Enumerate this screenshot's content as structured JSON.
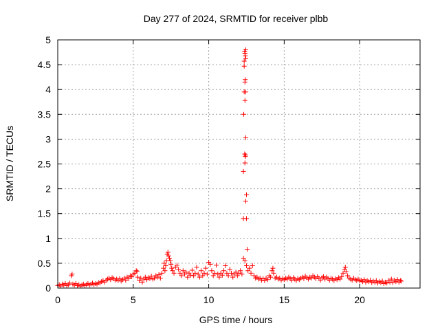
{
  "chart_data": {
    "type": "scatter",
    "title": "Day 277 of 2024, SRMTID for receiver plbb",
    "xlabel": "GPS time / hours",
    "ylabel": "SRMTID / TECUs",
    "xlim": [
      0,
      24
    ],
    "ylim": [
      0,
      5
    ],
    "xticks": [
      "0",
      "5",
      "10",
      "15",
      "20"
    ],
    "yticks": [
      "0",
      "0.5",
      "1",
      "1.5",
      "2",
      "2.5",
      "3",
      "3.5",
      "4",
      "4.5",
      "5"
    ],
    "grid": true,
    "marker": "plus",
    "color": "#ff0000",
    "series": [
      {
        "points": [
          [
            0.0,
            0.05
          ],
          [
            0.1,
            0.07
          ],
          [
            0.2,
            0.04
          ],
          [
            0.3,
            0.08
          ],
          [
            0.4,
            0.06
          ],
          [
            0.5,
            0.09
          ],
          [
            0.6,
            0.05
          ],
          [
            0.7,
            0.07
          ],
          [
            0.8,
            0.1
          ],
          [
            0.9,
            0.25
          ],
          [
            0.95,
            0.28
          ],
          [
            1.0,
            0.08
          ],
          [
            1.1,
            0.06
          ],
          [
            1.2,
            0.09
          ],
          [
            1.3,
            0.05
          ],
          [
            1.4,
            0.07
          ],
          [
            1.5,
            0.04
          ],
          [
            1.6,
            0.06
          ],
          [
            1.7,
            0.08
          ],
          [
            1.8,
            0.05
          ],
          [
            1.9,
            0.07
          ],
          [
            2.0,
            0.09
          ],
          [
            2.1,
            0.06
          ],
          [
            2.2,
            0.08
          ],
          [
            2.3,
            0.1
          ],
          [
            2.4,
            0.07
          ],
          [
            2.5,
            0.09
          ],
          [
            2.6,
            0.08
          ],
          [
            2.7,
            0.11
          ],
          [
            2.8,
            0.1
          ],
          [
            2.9,
            0.13
          ],
          [
            3.0,
            0.15
          ],
          [
            3.1,
            0.12
          ],
          [
            3.2,
            0.16
          ],
          [
            3.3,
            0.18
          ],
          [
            3.4,
            0.2
          ],
          [
            3.5,
            0.17
          ],
          [
            3.6,
            0.21
          ],
          [
            3.7,
            0.19
          ],
          [
            3.8,
            0.16
          ],
          [
            3.9,
            0.18
          ],
          [
            4.0,
            0.15
          ],
          [
            4.1,
            0.19
          ],
          [
            4.2,
            0.14
          ],
          [
            4.3,
            0.17
          ],
          [
            4.4,
            0.2
          ],
          [
            4.5,
            0.16
          ],
          [
            4.6,
            0.22
          ],
          [
            4.7,
            0.19
          ],
          [
            4.8,
            0.25
          ],
          [
            4.9,
            0.23
          ],
          [
            5.0,
            0.28
          ],
          [
            5.1,
            0.3
          ],
          [
            5.2,
            0.35
          ],
          [
            5.25,
            0.34
          ],
          [
            5.3,
            0.22
          ],
          [
            5.4,
            0.15
          ],
          [
            5.5,
            0.2
          ],
          [
            5.6,
            0.12
          ],
          [
            5.7,
            0.18
          ],
          [
            5.8,
            0.22
          ],
          [
            5.9,
            0.17
          ],
          [
            6.0,
            0.21
          ],
          [
            6.1,
            0.19
          ],
          [
            6.2,
            0.24
          ],
          [
            6.3,
            0.18
          ],
          [
            6.4,
            0.2
          ],
          [
            6.5,
            0.25
          ],
          [
            6.6,
            0.22
          ],
          [
            6.7,
            0.27
          ],
          [
            6.8,
            0.2
          ],
          [
            6.9,
            0.3
          ],
          [
            7.0,
            0.4
          ],
          [
            7.05,
            0.5
          ],
          [
            7.1,
            0.35
          ],
          [
            7.15,
            0.45
          ],
          [
            7.2,
            0.55
          ],
          [
            7.25,
            0.68
          ],
          [
            7.3,
            0.72
          ],
          [
            7.35,
            0.65
          ],
          [
            7.4,
            0.6
          ],
          [
            7.45,
            0.55
          ],
          [
            7.5,
            0.48
          ],
          [
            7.55,
            0.4
          ],
          [
            7.6,
            0.35
          ],
          [
            7.7,
            0.3
          ],
          [
            7.8,
            0.42
          ],
          [
            7.9,
            0.46
          ],
          [
            8.0,
            0.38
          ],
          [
            8.1,
            0.3
          ],
          [
            8.2,
            0.25
          ],
          [
            8.3,
            0.35
          ],
          [
            8.4,
            0.28
          ],
          [
            8.5,
            0.32
          ],
          [
            8.6,
            0.22
          ],
          [
            8.7,
            0.3
          ],
          [
            8.8,
            0.26
          ],
          [
            8.9,
            0.36
          ],
          [
            9.0,
            0.25
          ],
          [
            9.1,
            0.3
          ],
          [
            9.2,
            0.42
          ],
          [
            9.3,
            0.28
          ],
          [
            9.4,
            0.22
          ],
          [
            9.5,
            0.35
          ],
          [
            9.6,
            0.25
          ],
          [
            9.7,
            0.3
          ],
          [
            9.8,
            0.4
          ],
          [
            9.9,
            0.28
          ],
          [
            10.0,
            0.52
          ],
          [
            10.1,
            0.48
          ],
          [
            10.2,
            0.35
          ],
          [
            10.3,
            0.25
          ],
          [
            10.4,
            0.3
          ],
          [
            10.5,
            0.46
          ],
          [
            10.6,
            0.28
          ],
          [
            10.7,
            0.22
          ],
          [
            10.8,
            0.3
          ],
          [
            10.9,
            0.26
          ],
          [
            11.0,
            0.35
          ],
          [
            11.1,
            0.45
          ],
          [
            11.2,
            0.3
          ],
          [
            11.3,
            0.25
          ],
          [
            11.4,
            0.38
          ],
          [
            11.5,
            0.3
          ],
          [
            11.6,
            0.22
          ],
          [
            11.7,
            0.28
          ],
          [
            11.8,
            0.32
          ],
          [
            11.9,
            0.25
          ],
          [
            12.0,
            0.3
          ],
          [
            12.1,
            0.35
          ],
          [
            12.2,
            0.28
          ],
          [
            12.3,
            0.6
          ],
          [
            12.3,
            1.4
          ],
          [
            12.3,
            2.35
          ],
          [
            12.32,
            3.5
          ],
          [
            12.35,
            4.47
          ],
          [
            12.38,
            4.77
          ],
          [
            12.4,
            4.73
          ],
          [
            12.42,
            4.68
          ],
          [
            12.45,
            4.62
          ],
          [
            12.35,
            4.57
          ],
          [
            12.45,
            4.8
          ],
          [
            12.4,
            4.15
          ],
          [
            12.42,
            4.2
          ],
          [
            12.35,
            3.95
          ],
          [
            12.45,
            3.95
          ],
          [
            12.4,
            3.78
          ],
          [
            12.38,
            2.7
          ],
          [
            12.42,
            2.65
          ],
          [
            12.45,
            2.68
          ],
          [
            12.4,
            2.52
          ],
          [
            12.45,
            3.03
          ],
          [
            12.5,
            1.88
          ],
          [
            12.45,
            1.75
          ],
          [
            12.5,
            1.4
          ],
          [
            12.55,
            0.78
          ],
          [
            12.4,
            0.55
          ],
          [
            12.5,
            0.45
          ],
          [
            12.6,
            0.35
          ],
          [
            12.7,
            0.4
          ],
          [
            12.8,
            0.3
          ],
          [
            12.9,
            0.45
          ],
          [
            13.0,
            0.25
          ],
          [
            13.1,
            0.2
          ],
          [
            13.2,
            0.22
          ],
          [
            13.3,
            0.18
          ],
          [
            13.4,
            0.2
          ],
          [
            13.5,
            0.16
          ],
          [
            13.6,
            0.19
          ],
          [
            13.7,
            0.15
          ],
          [
            13.8,
            0.2
          ],
          [
            13.9,
            0.17
          ],
          [
            14.0,
            0.25
          ],
          [
            14.1,
            0.22
          ],
          [
            14.2,
            0.35
          ],
          [
            14.25,
            0.4
          ],
          [
            14.3,
            0.3
          ],
          [
            14.4,
            0.2
          ],
          [
            14.5,
            0.22
          ],
          [
            14.6,
            0.18
          ],
          [
            14.7,
            0.2
          ],
          [
            14.8,
            0.16
          ],
          [
            14.9,
            0.19
          ],
          [
            15.0,
            0.17
          ],
          [
            15.1,
            0.2
          ],
          [
            15.2,
            0.18
          ],
          [
            15.3,
            0.22
          ],
          [
            15.4,
            0.19
          ],
          [
            15.5,
            0.16
          ],
          [
            15.6,
            0.21
          ],
          [
            15.7,
            0.18
          ],
          [
            15.8,
            0.15
          ],
          [
            15.9,
            0.19
          ],
          [
            16.0,
            0.17
          ],
          [
            16.1,
            0.2
          ],
          [
            16.2,
            0.22
          ],
          [
            16.3,
            0.19
          ],
          [
            16.4,
            0.24
          ],
          [
            16.5,
            0.21
          ],
          [
            16.6,
            0.18
          ],
          [
            16.7,
            0.22
          ],
          [
            16.8,
            0.2
          ],
          [
            16.9,
            0.25
          ],
          [
            17.0,
            0.22
          ],
          [
            17.1,
            0.19
          ],
          [
            17.2,
            0.23
          ],
          [
            17.3,
            0.2
          ],
          [
            17.4,
            0.16
          ],
          [
            17.5,
            0.21
          ],
          [
            17.6,
            0.23
          ],
          [
            17.7,
            0.18
          ],
          [
            17.8,
            0.22
          ],
          [
            17.9,
            0.19
          ],
          [
            18.0,
            0.16
          ],
          [
            18.1,
            0.2
          ],
          [
            18.2,
            0.18
          ],
          [
            18.3,
            0.15
          ],
          [
            18.4,
            0.19
          ],
          [
            18.5,
            0.17
          ],
          [
            18.6,
            0.21
          ],
          [
            18.7,
            0.18
          ],
          [
            18.8,
            0.23
          ],
          [
            18.9,
            0.3
          ],
          [
            19.0,
            0.38
          ],
          [
            19.05,
            0.42
          ],
          [
            19.1,
            0.33
          ],
          [
            19.2,
            0.25
          ],
          [
            19.3,
            0.2
          ],
          [
            19.4,
            0.18
          ],
          [
            19.5,
            0.16
          ],
          [
            19.6,
            0.2
          ],
          [
            19.7,
            0.17
          ],
          [
            19.8,
            0.15
          ],
          [
            19.9,
            0.18
          ],
          [
            20.0,
            0.14
          ],
          [
            20.1,
            0.16
          ],
          [
            20.2,
            0.13
          ],
          [
            20.3,
            0.17
          ],
          [
            20.4,
            0.12
          ],
          [
            20.5,
            0.15
          ],
          [
            20.6,
            0.13
          ],
          [
            20.7,
            0.16
          ],
          [
            20.8,
            0.11
          ],
          [
            20.9,
            0.14
          ],
          [
            21.0,
            0.12
          ],
          [
            21.1,
            0.15
          ],
          [
            21.2,
            0.1
          ],
          [
            21.3,
            0.13
          ],
          [
            21.4,
            0.11
          ],
          [
            21.5,
            0.14
          ],
          [
            21.6,
            0.09
          ],
          [
            21.7,
            0.12
          ],
          [
            21.8,
            0.1
          ],
          [
            21.9,
            0.15
          ],
          [
            22.0,
            0.12
          ],
          [
            22.1,
            0.18
          ],
          [
            22.2,
            0.11
          ],
          [
            22.3,
            0.16
          ],
          [
            22.4,
            0.13
          ],
          [
            22.5,
            0.17
          ],
          [
            22.6,
            0.12
          ],
          [
            22.7,
            0.15
          ],
          [
            22.75,
            0.14
          ]
        ]
      }
    ]
  }
}
